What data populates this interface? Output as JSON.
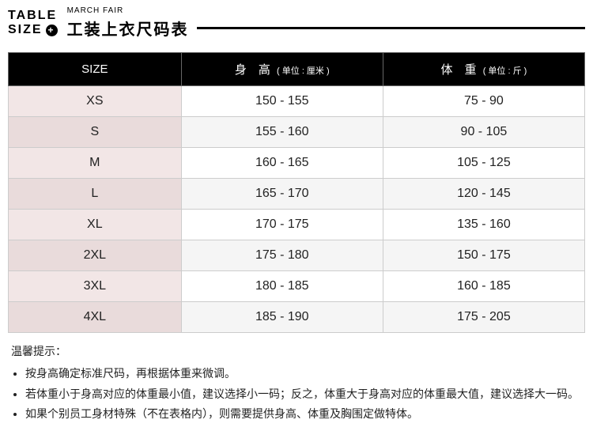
{
  "header": {
    "label_table": "TABLE",
    "label_size": "SIZE",
    "brand": "MARCH FAIR",
    "title": "工装上衣尺码表"
  },
  "table": {
    "columns": [
      {
        "label": "SIZE",
        "unit": ""
      },
      {
        "label": "身　高",
        "unit": "( 单位 : 厘米 )"
      },
      {
        "label": "体　重",
        "unit": "( 单位 : 斤 )"
      }
    ],
    "rows": [
      {
        "size": "XS",
        "height": "150 - 155",
        "weight": "75 - 90"
      },
      {
        "size": "S",
        "height": "155 - 160",
        "weight": "90 - 105"
      },
      {
        "size": "M",
        "height": "160 - 165",
        "weight": "105 - 125"
      },
      {
        "size": "L",
        "height": "165 - 170",
        "weight": "120 - 145"
      },
      {
        "size": "XL",
        "height": "170 - 175",
        "weight": "135 - 160"
      },
      {
        "size": "2XL",
        "height": "175 - 180",
        "weight": "150 - 175"
      },
      {
        "size": "3XL",
        "height": "180 - 185",
        "weight": "160 - 185"
      },
      {
        "size": "4XL",
        "height": "185 - 190",
        "weight": "175 - 205"
      }
    ],
    "header_bg": "#000000",
    "header_fg": "#ffffff",
    "size_col_bg_even": "#f2e6e6",
    "size_col_bg_odd": "#e9dbdb",
    "val_col_bg_even": "#ffffff",
    "val_col_bg_odd": "#f5f5f5",
    "border_color": "#cccccc"
  },
  "notes": {
    "title": "温馨提示：",
    "items": [
      "按身高确定标准尺码，再根据体重来微调。",
      "若体重小于身高对应的体重最小值，建议选择小一码；反之，体重大于身高对应的体重最大值，建议选择大一码。",
      "如果个别员工身材特殊（不在表格内），则需要提供身高、体重及胸围定做特体。"
    ]
  }
}
